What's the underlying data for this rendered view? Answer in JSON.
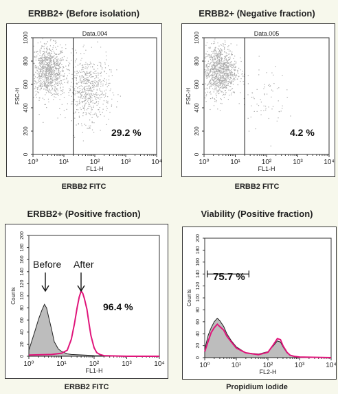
{
  "panels": [
    {
      "title": "ERBB2+ (Before isolation)",
      "x_caption": "ERBB2 FITC",
      "plot_label": "Data.004",
      "percent_label": "29.2 %",
      "chart_data": {
        "type": "scatter",
        "xlabel": "FL1-H",
        "ylabel": "FSC-H",
        "xscale": "log",
        "xlim": [
          1,
          10000
        ],
        "ylim": [
          0,
          1000
        ],
        "xticks": [
          "10⁰",
          "10¹",
          "10²",
          "10³",
          "10⁴"
        ],
        "yticks": [
          "0",
          "200",
          "400",
          "600",
          "800",
          "1000"
        ],
        "gate_x": 20,
        "gate_percent": 29.2,
        "clusters": [
          {
            "x_center": 3,
            "y_center": 720,
            "points": 900
          },
          {
            "x_center": 60,
            "y_center": 560,
            "points": 600
          }
        ]
      }
    },
    {
      "title": "ERBB2+ (Negative fraction)",
      "x_caption": "ERBB2 FITC",
      "plot_label": "Data.005",
      "percent_label": "4.2 %",
      "chart_data": {
        "type": "scatter",
        "xlabel": "FL1-H",
        "ylabel": "FSC-H",
        "xscale": "log",
        "xlim": [
          1,
          10000
        ],
        "ylim": [
          0,
          1000
        ],
        "xticks": [
          "10⁰",
          "10¹",
          "10²",
          "10³",
          "10⁴"
        ],
        "yticks": [
          "0",
          "200",
          "400",
          "600",
          "800",
          "1000"
        ],
        "gate_x": 20,
        "gate_percent": 4.2,
        "clusters": [
          {
            "x_center": 3,
            "y_center": 720,
            "points": 1000
          },
          {
            "x_center": 80,
            "y_center": 500,
            "points": 70
          }
        ]
      }
    },
    {
      "title": "ERBB2+ (Positive fraction)",
      "x_caption": "ERBB2 FITC",
      "percent_label": "96.4 %",
      "annotations": {
        "before": "Before",
        "after": "After"
      },
      "chart_data": {
        "type": "area",
        "xlabel": "FL1-H",
        "ylabel": "Counts",
        "xscale": "log",
        "xlim": [
          1,
          10000
        ],
        "ylim": [
          0,
          200
        ],
        "xticks": [
          "10⁰",
          "10¹",
          "10²",
          "10³",
          "10⁴"
        ],
        "yticks": [
          "0",
          "20",
          "40",
          "60",
          "80",
          "100",
          "120",
          "140",
          "160",
          "180",
          "200"
        ],
        "series": [
          {
            "color": "#999999",
            "filled": true,
            "x": [
              1,
              1.5,
              2,
              2.5,
              3,
              3.5,
              4,
              5,
              6,
              8,
              10,
              15,
              20,
              50,
              100,
              1000,
              10000
            ],
            "y": [
              10,
              40,
              62,
              76,
              86,
              80,
              66,
              44,
              24,
              12,
              8,
              4,
              3,
              2,
              1,
              0,
              0
            ]
          },
          {
            "color": "#e0147a",
            "filled": false,
            "x": [
              1,
              5,
              10,
              15,
              20,
              25,
              30,
              35,
              40,
              45,
              50,
              60,
              70,
              80,
              100,
              120,
              150,
              200,
              1000,
              10000
            ],
            "y": [
              2,
              3,
              5,
              10,
              28,
              54,
              80,
              98,
              108,
              104,
              96,
              78,
              54,
              34,
              14,
              6,
              3,
              1,
              0,
              0
            ]
          }
        ]
      }
    },
    {
      "title": "Viability (Positive fraction)",
      "x_caption": "Propidium Iodide",
      "percent_label": "75.7 %",
      "chart_data": {
        "type": "area",
        "xlabel": "FL2-H",
        "ylabel": "Counts",
        "xscale": "log",
        "xlim": [
          1,
          10000
        ],
        "ylim": [
          0,
          200
        ],
        "xticks": [
          "10⁰",
          "10¹",
          "10²",
          "10³",
          "10⁴"
        ],
        "yticks": [
          "0",
          "20",
          "40",
          "60",
          "80",
          "100",
          "120",
          "140",
          "160",
          "180",
          "200"
        ],
        "marker_range": [
          1.2,
          25
        ],
        "marker_y": 140,
        "series": [
          {
            "color": "#999999",
            "filled": true,
            "x": [
              1,
              1.3,
              1.6,
              2,
              2.5,
              3,
              4,
              5,
              7,
              10,
              20,
              50,
              100,
              150,
              200,
              250,
              300,
              400,
              500,
              700,
              1000,
              10000
            ],
            "y": [
              14,
              38,
              50,
              60,
              66,
              62,
              52,
              40,
              28,
              18,
              8,
              6,
              10,
              20,
              28,
              26,
              18,
              8,
              4,
              2,
              1,
              0
            ]
          },
          {
            "color": "#e0147a",
            "filled": false,
            "x": [
              1,
              1.3,
              1.6,
              2,
              2.5,
              3,
              4,
              5,
              7,
              10,
              20,
              50,
              100,
              150,
              200,
              250,
              300,
              400,
              500,
              700,
              1000,
              10000
            ],
            "y": [
              10,
              28,
              42,
              50,
              56,
              52,
              46,
              36,
              26,
              16,
              8,
              5,
              9,
              22,
              32,
              30,
              20,
              9,
              4,
              2,
              1,
              0
            ]
          }
        ]
      }
    }
  ]
}
